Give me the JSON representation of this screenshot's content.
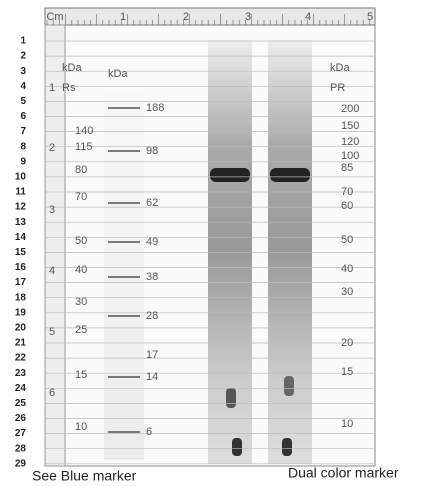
{
  "ruler": {
    "unit": "Cm",
    "top_ticks": [
      "1",
      "2",
      "3",
      "4",
      "5"
    ],
    "side_ticks": [
      "1",
      "2",
      "3",
      "4",
      "5",
      "6"
    ]
  },
  "rows": [
    "1",
    "2",
    "3",
    "4",
    "5",
    "6",
    "7",
    "8",
    "9",
    "10",
    "11",
    "12",
    "13",
    "14",
    "15",
    "16",
    "17",
    "18",
    "19",
    "20",
    "21",
    "22",
    "23",
    "24",
    "25",
    "26",
    "27",
    "28",
    "29"
  ],
  "rs_marker": {
    "headers": [
      "kDa",
      "Rs"
    ],
    "labels": [
      "140",
      "115",
      "80",
      "70",
      "50",
      "40",
      "30",
      "25",
      "15",
      "10"
    ]
  },
  "see_blue_marker": {
    "header": "kDa",
    "labels": [
      "188",
      "98",
      "62",
      "49",
      "38",
      "28",
      "17",
      "14",
      "6"
    ]
  },
  "dual_color_marker": {
    "headers": [
      "kDa",
      "PR"
    ],
    "labels": [
      "200",
      "150",
      "120",
      "100",
      "85",
      "70",
      "60",
      "50",
      "40",
      "30",
      "20",
      "15",
      "10"
    ]
  },
  "captions": [
    "See Blue marker",
    "Dual color marker"
  ]
}
